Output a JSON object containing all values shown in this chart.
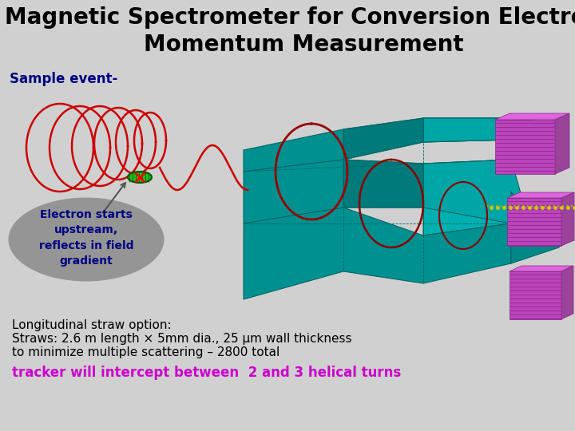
{
  "title_line1": "Magnetic Spectrometer for Conversion Electron",
  "title_line2": "Momentum Measurement",
  "title_fontsize": 20,
  "title_color": "#000000",
  "sample_event_text": "Sample event-",
  "sample_event_color": "#000080",
  "sample_event_fontsize": 12,
  "callout_text": "Electron starts\nupstream,\nreflects in field\ngradient",
  "callout_text_color": "#000080",
  "callout_text_fontsize": 10,
  "callout_ellipse_color": "#888888",
  "straw_text_line1": "Longitudinal straw option:",
  "straw_text_line2": "Straws: 2.6 m length × 5mm dia., 25 μm wall thickness",
  "straw_text_line3": "to minimize multiple scattering – 2800 total",
  "straw_text_color": "#000000",
  "straw_text_fontsize": 11,
  "tracker_text": "tracker will intercept between  2 and 3 helical turns",
  "tracker_text_color": "#cc00cc",
  "tracker_text_fontsize": 12,
  "bg_color": "#d0d0d0",
  "teal_color": "#009090",
  "teal_dark": "#006666",
  "teal_light": "#00b0b0",
  "purple_color": "#bb44bb",
  "purple_dark": "#882288",
  "fig_width": 7.2,
  "fig_height": 5.4,
  "dpi": 100
}
